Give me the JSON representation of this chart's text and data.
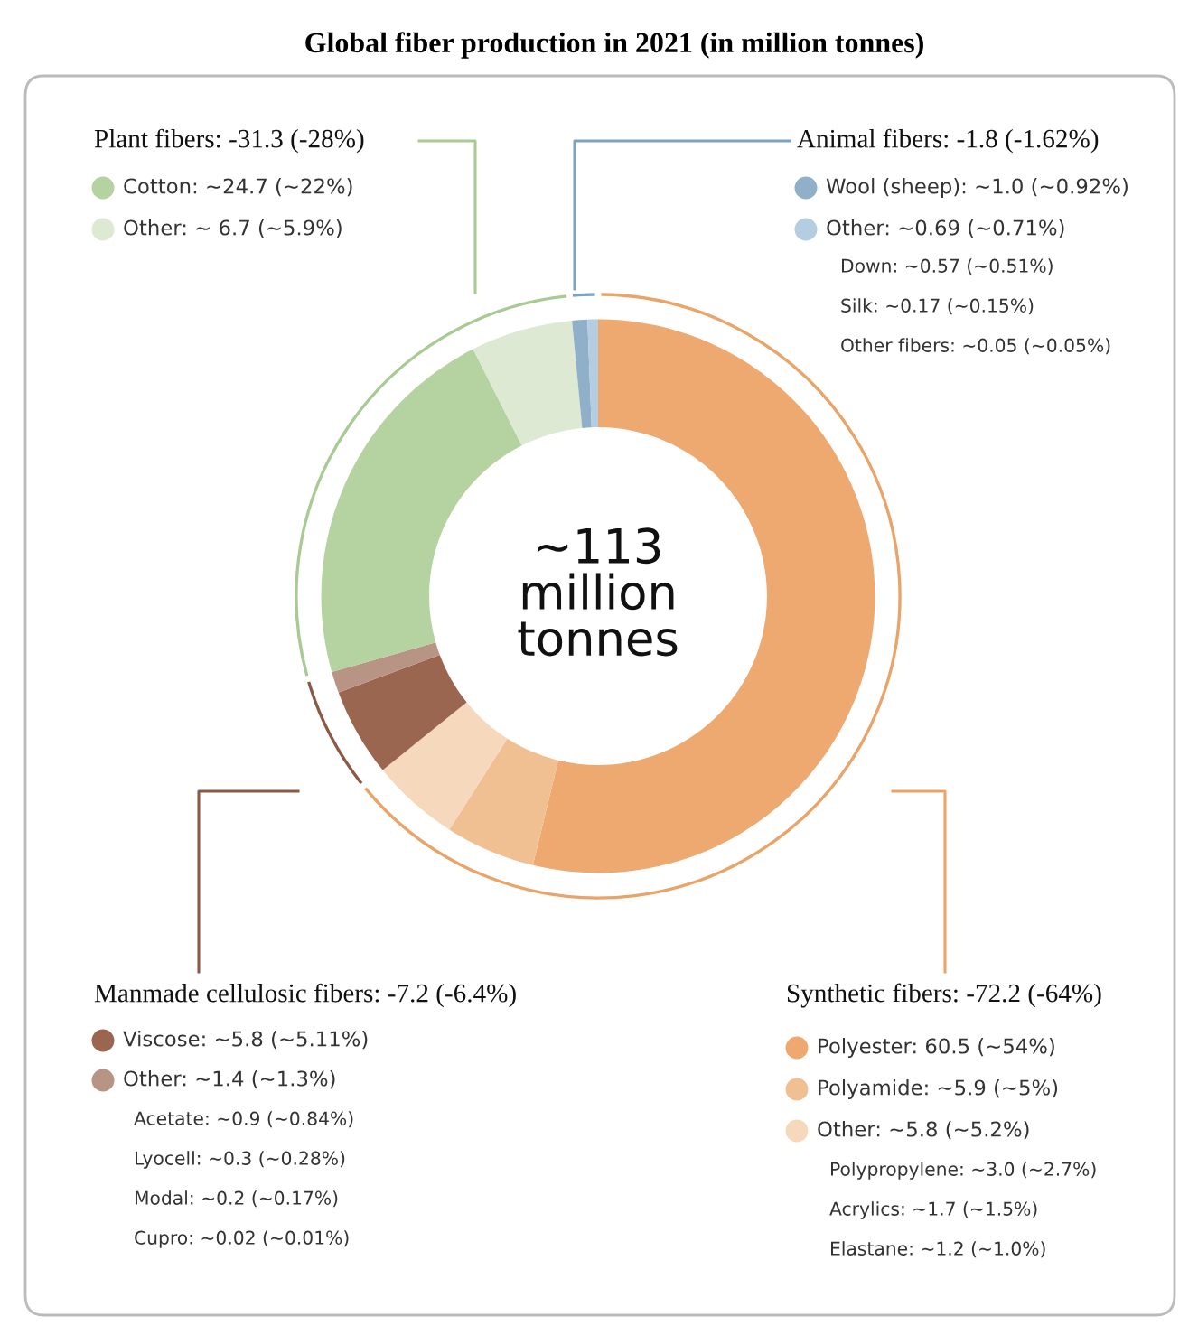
{
  "chart_data": {
    "type": "donut",
    "title": "Global fiber production in 2021 (in million tonnes)",
    "categories": [
      "Polyester: 60.5 (~54%)",
      "Polyamide: ~5.9 (~5%)",
      "Other: ~5.8 (~5.2%)",
      "Viscose: ~5.8 (~5.11%)",
      "Other: ~1.4 (~1.3%)",
      "Cotton: ~24.7 (~22%)",
      "Other: ~ 6.7 (~5.9%)",
      "Wool (sheep): ~1.0 (~0.92%)",
      "Other: ~0.69 (~0.71%)"
    ],
    "legend": "bottom right",
    "values": [
      60.5,
      5.9,
      5.8,
      5.8,
      1.4,
      24.7,
      6.7,
      1.0,
      0.69
    ],
    "colors": [
      "#eda96f",
      "#f0c093",
      "#f6d8bd",
      "#9b6650",
      "#b89484",
      "#b5d3a0",
      "#dde9d2",
      "#8fb0c8",
      "#b4cde0"
    ],
    "annotations": [
      "~113\nmillion\ntonnes",
      "Plant fibers: -31.3 (-28%)",
      "Animal fibers: -1.8 (-1.62%)",
      "Manmade cellulosic fibers: -7.2 (-6.4%)",
      "Synthetic fibers: -72.2 (-64%)",
      "Down: ~0.57 (~0.51%)",
      "Silk: ~0.17 (~0.15%)",
      "Other fibers: ~0.05 (~0.05%)",
      "Acetate: ~0.9 (~0.84%)",
      "Lyocell: ~0.3 (~0.28%)",
      "Modal: ~0.2 (~0.17%)",
      "Cupro: ~0.02 (~0.01%)",
      "Polypropylene: ~3.0 (~2.7%)",
      "Acrylics: ~1.7 (~1.5%)",
      "Elastane: ~1.2 (~1.0%)"
    ]
  }
}
